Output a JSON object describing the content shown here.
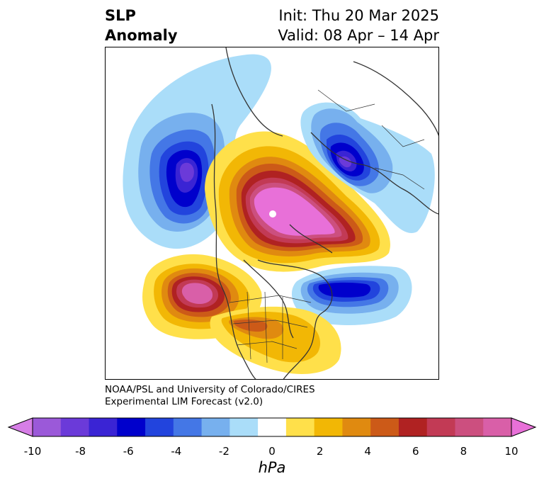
{
  "header": {
    "title_line1": "SLP",
    "title_line2": "Anomaly",
    "init_text": "Init: Thu 20 Mar 2025",
    "valid_text": "Valid: 08 Apr – 14 Apr"
  },
  "credit": {
    "line1": "NOAA/PSL and University of Colorado/CIRES",
    "line2": "Experimental LIM Forecast (v2.0)"
  },
  "colorbar": {
    "unit": "hPa",
    "tick_labels": [
      "-10",
      "-8",
      "-6",
      "-4",
      "-2",
      "0",
      "2",
      "4",
      "6",
      "8",
      "10"
    ],
    "colors": [
      "#d67ee6",
      "#9b59d9",
      "#6b3ad9",
      "#3a24d4",
      "#0000cc",
      "#2244dd",
      "#4477e6",
      "#77b0ee",
      "#aaddf9",
      "#ffffff",
      "#ffe04a",
      "#f2b705",
      "#e08a10",
      "#cc5a18",
      "#b02222",
      "#c23a55",
      "#cc4f7f",
      "#d95fa8",
      "#e870d8"
    ]
  },
  "map": {
    "projection": "polar stereographic (Northern Hemisphere)",
    "features": [
      "negative anomaly over Gulf of Alaska",
      "positive anomaly centered over the Arctic",
      "negative anomaly over northern Europe",
      "positive anomaly over eastern North Pacific",
      "negative anomaly over northwest Atlantic",
      "positive anomaly over eastern United States"
    ]
  }
}
